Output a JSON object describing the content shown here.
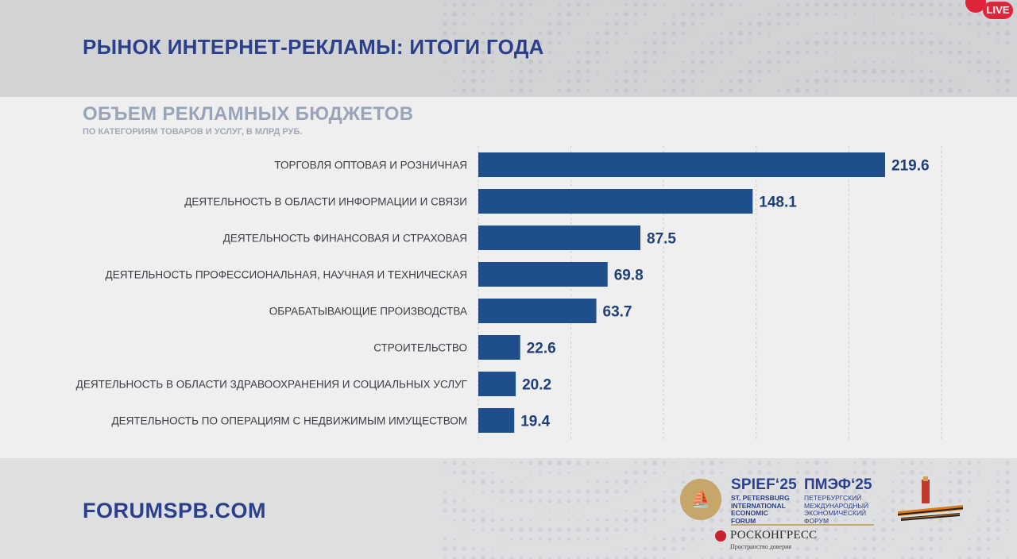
{
  "header": {
    "title": "РЫНОК ИНТЕРНЕТ-РЕКЛАМЫ: ИТОГИ ГОДА",
    "live_badge": "LIVE"
  },
  "chart_data": {
    "type": "bar",
    "orientation": "horizontal",
    "title": "ОБЪЕМ РЕКЛАМНЫХ БЮДЖЕТОВ",
    "subtitle": "ПО КАТЕГОРИЯМ ТОВАРОВ И УСЛУГ, В МЛРД РУБ.",
    "categories": [
      "ТОРГОВЛЯ ОПТОВАЯ И РОЗНИЧНАЯ",
      "ДЕЯТЕЛЬНОСТЬ В ОБЛАСТИ ИНФОРМАЦИИ И СВЯЗИ",
      "ДЕЯТЕЛЬНОСТЬ ФИНАНСОВАЯ И СТРАХОВАЯ",
      "ДЕЯТЕЛЬНОСТЬ ПРОФЕССИОНАЛЬНАЯ, НАУЧНАЯ И ТЕХНИЧЕСКАЯ",
      "ОБРАБАТЫВАЮЩИЕ ПРОИЗВОДСТВА",
      "СТРОИТЕЛЬСТВО",
      "ДЕЯТЕЛЬНОСТЬ В ОБЛАСТИ ЗДРАВООХРАНЕНИЯ И СОЦИАЛЬНЫХ УСЛУГ",
      "ДЕЯТЕЛЬНОСТЬ ПО ОПЕРАЦИЯМ С НЕДВИЖИМЫМ ИМУЩЕСТВОМ"
    ],
    "values": [
      219.6,
      148.1,
      87.5,
      69.8,
      63.7,
      22.6,
      20.2,
      19.4
    ],
    "value_labels": [
      "219.6",
      "148.1",
      "87.5",
      "69.8",
      "63.7",
      "22.6",
      "20.2",
      "19.4"
    ],
    "xlim": [
      0,
      250
    ],
    "grid_step": 50,
    "grid": true,
    "legend": "none",
    "bar_color": "#1f4e8c",
    "label_color": "#1f3f78"
  },
  "footer": {
    "url": "FORUMSPB.COM",
    "spief_head": "SPIEF‘25",
    "spief_lines": [
      "ST. PETERSBURG",
      "INTERNATIONAL",
      "ECONOMIC",
      "FORUM"
    ],
    "pmef_head": "ПМЭФ‘25",
    "pmef_lines": [
      "ПЕТЕРБУРГСКИЙ",
      "МЕЖДУНАРОДНЫЙ",
      "ЭКОНОМИЧЕСКИЙ",
      "ФОРУМ"
    ],
    "roscongress_name": "РОСКОНГРЕСС",
    "roscongress_tag": "Пространство доверия"
  },
  "colors": {
    "brand_blue": "#2b3f8c",
    "gold": "#c6a66a",
    "live_red": "#e0243a"
  }
}
